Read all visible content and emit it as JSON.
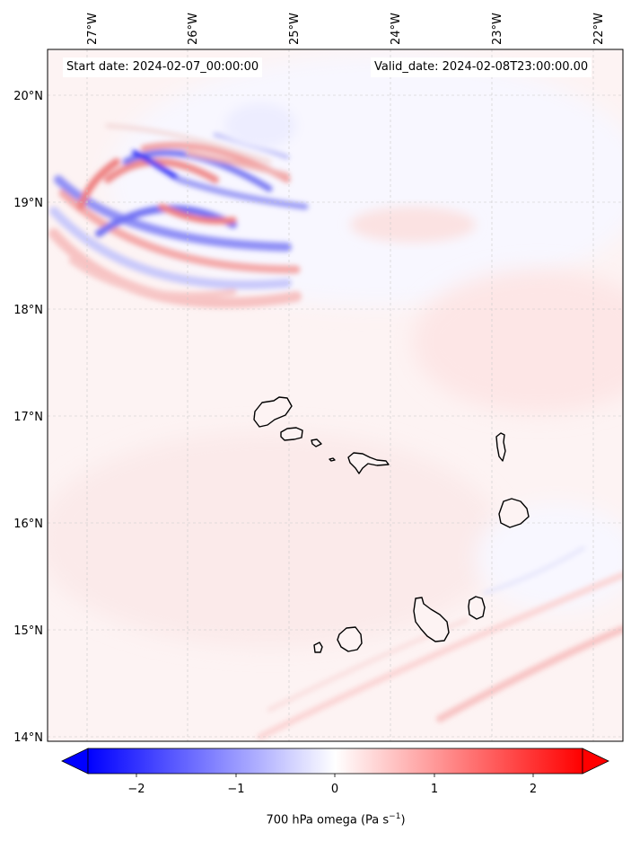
{
  "header": {
    "start_date": "Start date: 2024-02-07_00:00:00",
    "valid_date": "Valid_date: 2024-02-08T23:00:00.00"
  },
  "axes": {
    "longitude_labels": [
      "27°W",
      "26°W",
      "25°W",
      "24°W",
      "23°W",
      "22°W"
    ],
    "latitude_labels": [
      "20°N",
      "19°N",
      "18°N",
      "17°N",
      "16°N",
      "15°N",
      "14°N"
    ]
  },
  "colorbar": {
    "label_prefix": "700 hPa omega (Pa s",
    "label_exp": "−1",
    "label_suffix": ")",
    "ticks": [
      "−2",
      "−1",
      "0",
      "1",
      "2"
    ],
    "min": -2.6,
    "max": 2.6,
    "colors": {
      "negative": "#0000ff",
      "neutral": "#ffffff",
      "positive": "#ff0000"
    }
  },
  "map": {
    "field": "700 hPa omega",
    "region": "Cabo Verde",
    "islands": [
      "Santo Antão",
      "São Vicente",
      "Santa Luzia",
      "São Nicolau",
      "Sal",
      "Boa Vista",
      "Maio",
      "Santiago",
      "Fogo",
      "Brava"
    ]
  }
}
